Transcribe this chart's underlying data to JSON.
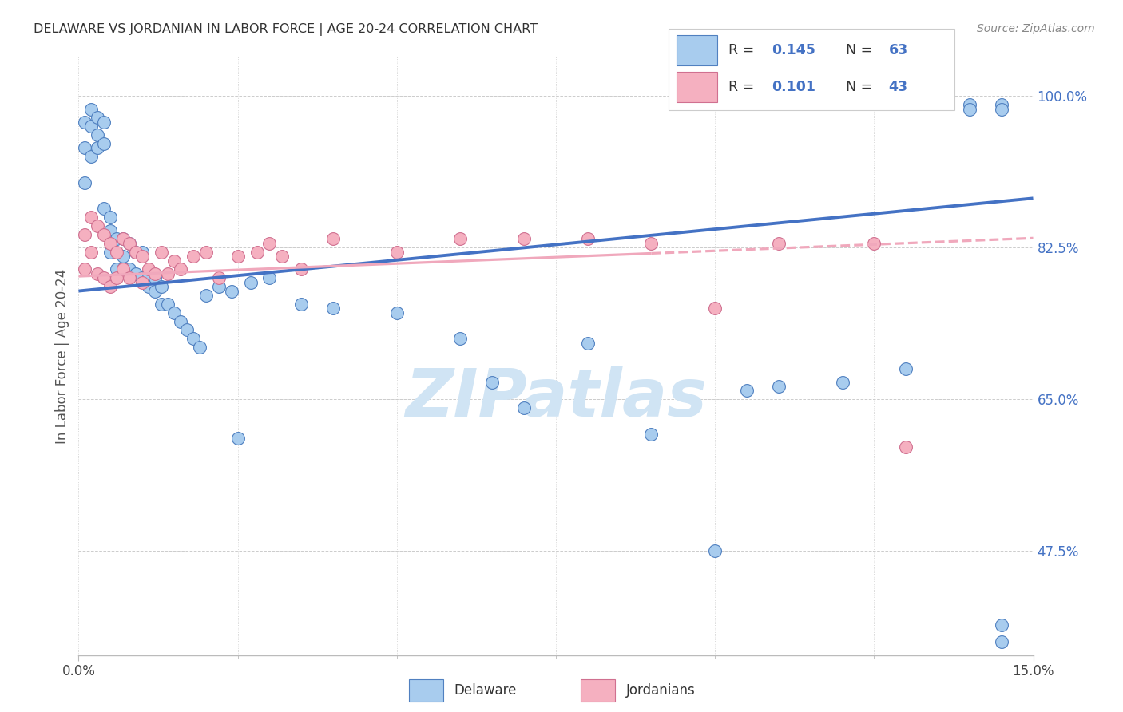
{
  "title": "DELAWARE VS JORDANIAN IN LABOR FORCE | AGE 20-24 CORRELATION CHART",
  "source": "Source: ZipAtlas.com",
  "ylabel": "In Labor Force | Age 20-24",
  "xlim": [
    0.0,
    0.15
  ],
  "ylim": [
    0.355,
    1.045
  ],
  "ytick_positions": [
    0.475,
    0.65,
    0.825,
    1.0
  ],
  "ytick_labels": [
    "47.5%",
    "65.0%",
    "82.5%",
    "100.0%"
  ],
  "xtick_major": [
    0.0,
    0.15
  ],
  "xtick_minor": [
    0.025,
    0.05,
    0.075,
    0.1,
    0.125
  ],
  "xticklabel_left": "0.0%",
  "xticklabel_right": "15.0%",
  "r_delaware": 0.145,
  "n_delaware": 63,
  "r_jordanian": 0.101,
  "n_jordanian": 43,
  "color_delaware_fill": "#A8CCEE",
  "color_delaware_edge": "#5080C0",
  "color_jordanian_fill": "#F5B0C0",
  "color_jordanian_edge": "#D07090",
  "color_line_delaware": "#4472C4",
  "color_line_jordanian": "#F0A8BC",
  "background_color": "#FFFFFF",
  "grid_color": "#CCCCCC",
  "watermark_color": "#D0E4F4",
  "title_color": "#333333",
  "source_color": "#888888",
  "ytick_color": "#4472C4",
  "legend_r_n_color": "#4472C4",
  "del_line_y0": 0.775,
  "del_line_y1": 0.882,
  "jor_line_y0": 0.792,
  "jor_line_y1": 0.836,
  "delaware_x": [
    0.001,
    0.001,
    0.001,
    0.002,
    0.002,
    0.002,
    0.003,
    0.003,
    0.003,
    0.004,
    0.004,
    0.004,
    0.005,
    0.005,
    0.005,
    0.006,
    0.006,
    0.007,
    0.007,
    0.007,
    0.008,
    0.008,
    0.009,
    0.009,
    0.01,
    0.01,
    0.011,
    0.011,
    0.012,
    0.012,
    0.013,
    0.013,
    0.014,
    0.015,
    0.016,
    0.017,
    0.018,
    0.019,
    0.02,
    0.022,
    0.024,
    0.025,
    0.027,
    0.03,
    0.035,
    0.04,
    0.05,
    0.06,
    0.065,
    0.07,
    0.08,
    0.09,
    0.1,
    0.105,
    0.11,
    0.12,
    0.13,
    0.14,
    0.14,
    0.145,
    0.145,
    0.145,
    0.145
  ],
  "delaware_y": [
    0.97,
    0.94,
    0.9,
    0.985,
    0.965,
    0.93,
    0.975,
    0.955,
    0.94,
    0.97,
    0.945,
    0.87,
    0.86,
    0.845,
    0.82,
    0.835,
    0.8,
    0.835,
    0.815,
    0.8,
    0.83,
    0.8,
    0.82,
    0.795,
    0.82,
    0.79,
    0.795,
    0.78,
    0.79,
    0.775,
    0.78,
    0.76,
    0.76,
    0.75,
    0.74,
    0.73,
    0.72,
    0.71,
    0.77,
    0.78,
    0.775,
    0.605,
    0.785,
    0.79,
    0.76,
    0.755,
    0.75,
    0.72,
    0.67,
    0.64,
    0.715,
    0.61,
    0.475,
    0.66,
    0.665,
    0.67,
    0.685,
    0.99,
    0.985,
    0.99,
    0.985,
    0.39,
    0.37
  ],
  "jordanian_x": [
    0.001,
    0.001,
    0.002,
    0.002,
    0.003,
    0.003,
    0.004,
    0.004,
    0.005,
    0.005,
    0.006,
    0.006,
    0.007,
    0.007,
    0.008,
    0.008,
    0.009,
    0.01,
    0.01,
    0.011,
    0.012,
    0.013,
    0.014,
    0.015,
    0.016,
    0.018,
    0.02,
    0.022,
    0.025,
    0.028,
    0.03,
    0.032,
    0.035,
    0.04,
    0.05,
    0.06,
    0.07,
    0.08,
    0.09,
    0.1,
    0.11,
    0.125,
    0.13
  ],
  "jordanian_y": [
    0.84,
    0.8,
    0.86,
    0.82,
    0.85,
    0.795,
    0.84,
    0.79,
    0.83,
    0.78,
    0.82,
    0.79,
    0.835,
    0.8,
    0.83,
    0.79,
    0.82,
    0.815,
    0.785,
    0.8,
    0.795,
    0.82,
    0.795,
    0.81,
    0.8,
    0.815,
    0.82,
    0.79,
    0.815,
    0.82,
    0.83,
    0.815,
    0.8,
    0.835,
    0.82,
    0.835,
    0.835,
    0.835,
    0.83,
    0.755,
    0.83,
    0.83,
    0.595
  ]
}
